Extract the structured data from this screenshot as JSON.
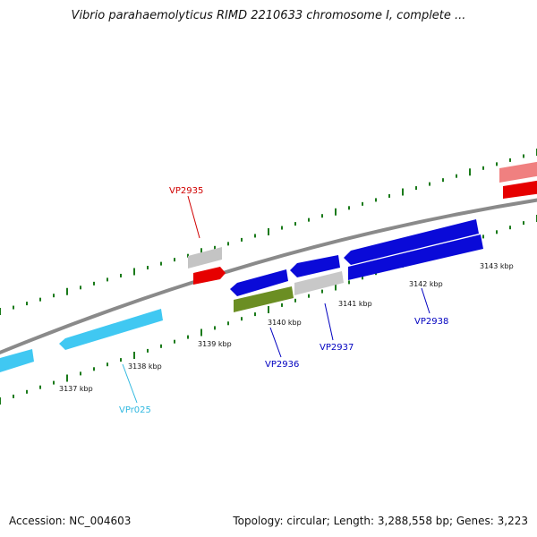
{
  "title": "Vibrio parahaemolyticus RIMD 2210633 chromosome I, complete ...",
  "footer": {
    "accession": "Accession: NC_004603",
    "stats": "Topology: circular; Length: 3,288,558 bp; Genes: 3,223"
  },
  "colors": {
    "backbone": "#888888",
    "ticks": "#1a7a1a",
    "gene_blue": "#0a0ad8",
    "gene_cyan": "#3fc8f0",
    "gene_red": "#e00000",
    "gene_pink": "#f08080",
    "gene_gray": "#c8c8c8",
    "gene_olive": "#6b8e23",
    "label_red": "#d00000",
    "label_blue": "#0000c0",
    "label_cyan": "#30b8e0"
  },
  "scale_labels": [
    "3137 kbp",
    "3138 kbp",
    "3139 kbp",
    "3140 kbp",
    "3141 kbp",
    "3142 kbp",
    "3143 kbp"
  ],
  "gene_labels": [
    "VP2935",
    "VP2936",
    "VP2937",
    "VP2938",
    "VPr025"
  ]
}
